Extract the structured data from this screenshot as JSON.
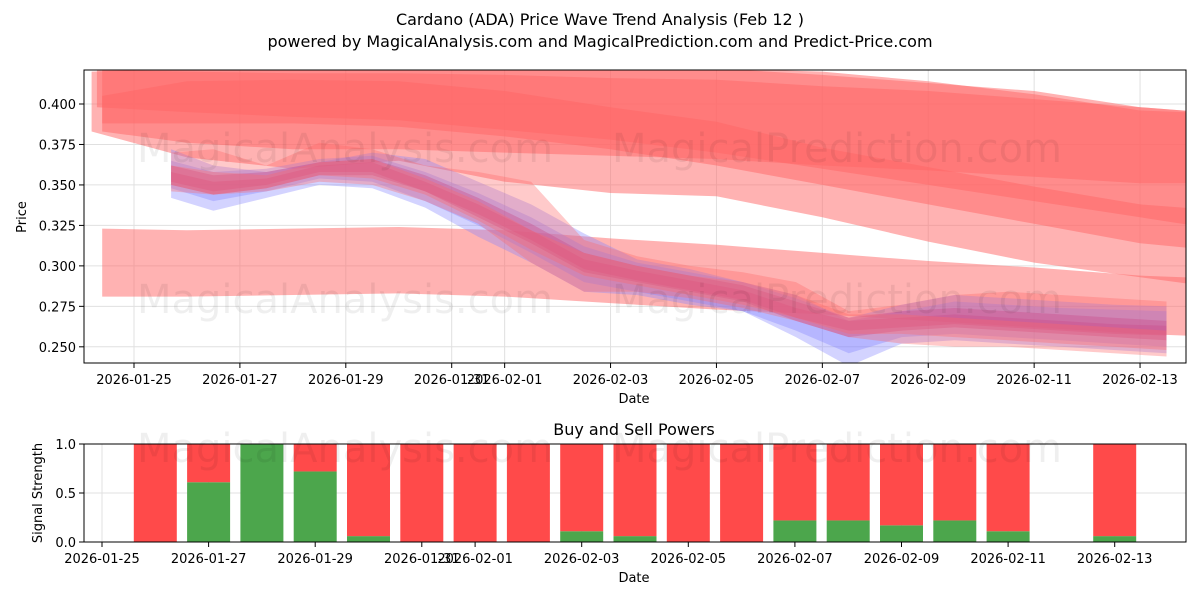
{
  "title_line1": "Cardano (ADA) Price Wave Trend Analysis (Feb 12 )",
  "title_line2": "powered by MagicalAnalysis.com and MagicalPrediction.com and Predict-Price.com",
  "watermarks": {
    "analysis": "MagicalAnalysis.com",
    "prediction": "MagicalPrediction.com"
  },
  "colors": {
    "band_red": "#ff6666",
    "band_blue": "#8080ff",
    "band_purple": "#b040a0",
    "buy": "#4ca64c",
    "sell": "#ff4a4a",
    "grid": "#e0e0e0"
  },
  "chart_data": [
    {
      "type": "area",
      "title": "",
      "xlabel": "Date",
      "ylabel": "Price",
      "ylim": [
        0.24,
        0.421
      ],
      "xlim": [
        "2026-01-24",
        "2026-02-13.9"
      ],
      "grid": true,
      "x_ticks": [
        "2026-01-25",
        "2026-01-27",
        "2026-01-29",
        "2026-01-31",
        "2026-02-01",
        "2026-02-03",
        "2026-02-05",
        "2026-02-07",
        "2026-02-09",
        "2026-02-11",
        "2026-02-13"
      ],
      "y_ticks": [
        0.4,
        0.375,
        0.35,
        0.325,
        0.3,
        0.275,
        0.25
      ],
      "y_tick_labels": [
        "0.400",
        "0.375",
        "0.350",
        "0.325",
        "0.300",
        "0.275",
        "0.250"
      ],
      "trend_bands": [
        {
          "name": "upper-trend-band-1",
          "x": [
            -0.8,
            1,
            3,
            5,
            7,
            9,
            11,
            13,
            15,
            17,
            19,
            20.6
          ],
          "upper": [
            0.42,
            0.422,
            0.422,
            0.422,
            0.422,
            0.422,
            0.422,
            0.418,
            0.413,
            0.408,
            0.398,
            0.394
          ],
          "lower": [
            0.383,
            0.367,
            0.36,
            0.365,
            0.352,
            0.345,
            0.343,
            0.33,
            0.315,
            0.302,
            0.293,
            0.286
          ]
        },
        {
          "name": "upper-trend-band-2",
          "x": [
            -0.7,
            1,
            3,
            5,
            7,
            9,
            11,
            13,
            15,
            17,
            19,
            20.6
          ],
          "upper": [
            0.422,
            0.422,
            0.422,
            0.422,
            0.422,
            0.422,
            0.422,
            0.42,
            0.414,
            0.406,
            0.396,
            0.394
          ],
          "lower": [
            0.398,
            0.395,
            0.392,
            0.39,
            0.384,
            0.378,
            0.37,
            0.36,
            0.35,
            0.34,
            0.33,
            0.322
          ]
        },
        {
          "name": "upper-trend-band-3",
          "x": [
            -0.6,
            1,
            3,
            5,
            7,
            9,
            11,
            13,
            15,
            17,
            19,
            20.6
          ],
          "upper": [
            0.405,
            0.414,
            0.415,
            0.414,
            0.408,
            0.398,
            0.389,
            0.373,
            0.361,
            0.349,
            0.338,
            0.334
          ],
          "lower": [
            0.388,
            0.388,
            0.388,
            0.386,
            0.38,
            0.372,
            0.362,
            0.35,
            0.338,
            0.326,
            0.314,
            0.309
          ]
        },
        {
          "name": "upper-trend-band-4",
          "x": [
            -0.6,
            1,
            3,
            5,
            7,
            9,
            11,
            13,
            15,
            17,
            19,
            20.6
          ],
          "upper": [
            0.421,
            0.42,
            0.419,
            0.419,
            0.418,
            0.416,
            0.415,
            0.411,
            0.408,
            0.403,
            0.398,
            0.394
          ],
          "lower": [
            0.383,
            0.376,
            0.372,
            0.372,
            0.37,
            0.368,
            0.366,
            0.362,
            0.359,
            0.355,
            0.351,
            0.351
          ]
        },
        {
          "name": "lower-trend-band",
          "x": [
            -0.6,
            1,
            3,
            5,
            7,
            9,
            11,
            13,
            15,
            17,
            19,
            20.6
          ],
          "upper": [
            0.323,
            0.322,
            0.323,
            0.324,
            0.322,
            0.317,
            0.313,
            0.308,
            0.303,
            0.299,
            0.294,
            0.292
          ],
          "lower": [
            0.281,
            0.281,
            0.282,
            0.283,
            0.281,
            0.277,
            0.273,
            0.27,
            0.266,
            0.262,
            0.258,
            0.256
          ]
        }
      ],
      "wave_bands": [
        {
          "name": "blue-wave-1",
          "color": "blue",
          "x": [
            0.7,
            1.5,
            2.5,
            3.5,
            4.5,
            5.5,
            6.5,
            7.5,
            8.5,
            9.5,
            10.5,
            11.5,
            12.5,
            13.5,
            14.5,
            15.5,
            16.5,
            17.5,
            18.5,
            19.5
          ],
          "upper": [
            0.372,
            0.362,
            0.358,
            0.364,
            0.37,
            0.366,
            0.352,
            0.338,
            0.32,
            0.304,
            0.298,
            0.29,
            0.282,
            0.266,
            0.272,
            0.278,
            0.276,
            0.274,
            0.273,
            0.272
          ],
          "lower": [
            0.342,
            0.334,
            0.342,
            0.35,
            0.348,
            0.336,
            0.318,
            0.302,
            0.284,
            0.282,
            0.276,
            0.272,
            0.256,
            0.238,
            0.252,
            0.254,
            0.252,
            0.25,
            0.248,
            0.246
          ]
        },
        {
          "name": "blue-wave-2",
          "color": "blue",
          "x": [
            0.7,
            1.5,
            2.5,
            3.5,
            4.5,
            5.5,
            6.5,
            7.5,
            8.5,
            9.5,
            10.5,
            11.5,
            12.5,
            13.5,
            14.5,
            15.5,
            16.5,
            17.5,
            18.5,
            19.5
          ],
          "upper": [
            0.365,
            0.358,
            0.36,
            0.366,
            0.368,
            0.358,
            0.345,
            0.33,
            0.312,
            0.302,
            0.296,
            0.29,
            0.28,
            0.268,
            0.276,
            0.282,
            0.28,
            0.278,
            0.276,
            0.275
          ],
          "lower": [
            0.348,
            0.34,
            0.346,
            0.354,
            0.352,
            0.34,
            0.325,
            0.308,
            0.29,
            0.284,
            0.278,
            0.272,
            0.26,
            0.246,
            0.256,
            0.258,
            0.256,
            0.254,
            0.252,
            0.25
          ]
        },
        {
          "name": "purple-wave-1",
          "color": "purple",
          "x": [
            0.7,
            1.5,
            2.5,
            3.5,
            4.5,
            5.5,
            6.5,
            7.5,
            8.5,
            9.5,
            10.5,
            11.5,
            12.5,
            13.5,
            14.5,
            15.5,
            16.5,
            17.5,
            18.5,
            19.5
          ],
          "upper": [
            0.362,
            0.356,
            0.358,
            0.364,
            0.366,
            0.356,
            0.342,
            0.326,
            0.308,
            0.3,
            0.294,
            0.288,
            0.278,
            0.268,
            0.272,
            0.274,
            0.272,
            0.27,
            0.268,
            0.266
          ],
          "lower": [
            0.35,
            0.344,
            0.348,
            0.356,
            0.356,
            0.346,
            0.33,
            0.314,
            0.296,
            0.29,
            0.284,
            0.278,
            0.266,
            0.256,
            0.26,
            0.262,
            0.26,
            0.258,
            0.256,
            0.254
          ]
        },
        {
          "name": "purple-wave-2",
          "color": "purple",
          "x": [
            0.7,
            1.5,
            2.5,
            3.5,
            4.5,
            5.5,
            6.5,
            7.5,
            8.5,
            9.5,
            10.5,
            11.5,
            12.5,
            13.5,
            14.5,
            15.5,
            16.5,
            17.5,
            18.5,
            19.5
          ],
          "upper": [
            0.358,
            0.352,
            0.354,
            0.362,
            0.364,
            0.352,
            0.338,
            0.322,
            0.304,
            0.297,
            0.291,
            0.285,
            0.274,
            0.266,
            0.268,
            0.27,
            0.268,
            0.266,
            0.264,
            0.263
          ],
          "lower": [
            0.352,
            0.346,
            0.35,
            0.358,
            0.358,
            0.346,
            0.332,
            0.316,
            0.298,
            0.291,
            0.285,
            0.279,
            0.268,
            0.26,
            0.262,
            0.264,
            0.262,
            0.26,
            0.258,
            0.257
          ]
        },
        {
          "name": "red-wave-1",
          "color": "red",
          "x": [
            0.7,
            1.5,
            2.5,
            3.5,
            4.5,
            5.5,
            6.5,
            7.5,
            8.5,
            9.5,
            10.5,
            11.5,
            12.5,
            13.5,
            14.5,
            15.5,
            16.5,
            17.5,
            18.5,
            19.5
          ],
          "upper": [
            0.37,
            0.372,
            0.362,
            0.376,
            0.372,
            0.362,
            0.358,
            0.352,
            0.316,
            0.306,
            0.3,
            0.296,
            0.29,
            0.272,
            0.276,
            0.282,
            0.284,
            0.282,
            0.28,
            0.278
          ],
          "lower": [
            0.346,
            0.344,
            0.346,
            0.352,
            0.35,
            0.34,
            0.326,
            0.302,
            0.284,
            0.284,
            0.28,
            0.274,
            0.266,
            0.256,
            0.252,
            0.25,
            0.25,
            0.248,
            0.246,
            0.244
          ]
        },
        {
          "name": "red-wave-2",
          "color": "red",
          "x": [
            0.7,
            1.5,
            2.5,
            3.5,
            4.5,
            5.5,
            6.5,
            7.5,
            8.5,
            9.5,
            10.5,
            11.5,
            12.5,
            13.5,
            14.5,
            15.5,
            16.5,
            17.5,
            18.5,
            19.5
          ],
          "upper": [
            0.362,
            0.358,
            0.356,
            0.364,
            0.366,
            0.354,
            0.34,
            0.322,
            0.308,
            0.3,
            0.294,
            0.29,
            0.282,
            0.27,
            0.27,
            0.268,
            0.266,
            0.264,
            0.262,
            0.26
          ],
          "lower": [
            0.35,
            0.344,
            0.348,
            0.356,
            0.354,
            0.344,
            0.328,
            0.31,
            0.294,
            0.288,
            0.282,
            0.276,
            0.268,
            0.258,
            0.258,
            0.256,
            0.254,
            0.252,
            0.25,
            0.248
          ]
        }
      ]
    },
    {
      "type": "bar",
      "title": "Buy and Sell Powers",
      "xlabel": "Date",
      "ylabel": "Signal Strength",
      "ylim": [
        0,
        1.0
      ],
      "grid": true,
      "x_ticks": [
        "2026-01-25",
        "2026-01-27",
        "2026-01-29",
        "2026-01-31",
        "2026-02-01",
        "2026-02-03",
        "2026-02-05",
        "2026-02-07",
        "2026-02-09",
        "2026-02-11",
        "2026-02-13"
      ],
      "y_ticks": [
        0.0,
        0.5,
        1.0
      ],
      "y_tick_labels": [
        "0.0",
        "0.5",
        "1.0"
      ],
      "categories": [
        "2026-01-26",
        "2026-01-27",
        "2026-01-28",
        "2026-01-29",
        "2026-01-30",
        "2026-01-31",
        "2026-02-01",
        "2026-02-02",
        "2026-02-03",
        "2026-02-04",
        "2026-02-05",
        "2026-02-06",
        "2026-02-07",
        "2026-02-08",
        "2026-02-09",
        "2026-02-10",
        "2026-02-11",
        "2026-02-12",
        "2026-02-13"
      ],
      "series": [
        {
          "name": "Buy",
          "values": [
            0.0,
            0.61,
            1.0,
            0.72,
            0.06,
            0.0,
            0.0,
            0.0,
            0.11,
            0.06,
            0.0,
            0.0,
            0.22,
            0.22,
            0.17,
            0.22,
            0.11,
            0.0,
            0.06
          ]
        },
        {
          "name": "Sell",
          "values": [
            1.0,
            0.39,
            0.0,
            0.28,
            0.94,
            1.0,
            1.0,
            1.0,
            0.89,
            0.94,
            1.0,
            1.0,
            0.78,
            0.78,
            0.83,
            0.78,
            0.89,
            0.0,
            0.94
          ]
        }
      ]
    }
  ]
}
